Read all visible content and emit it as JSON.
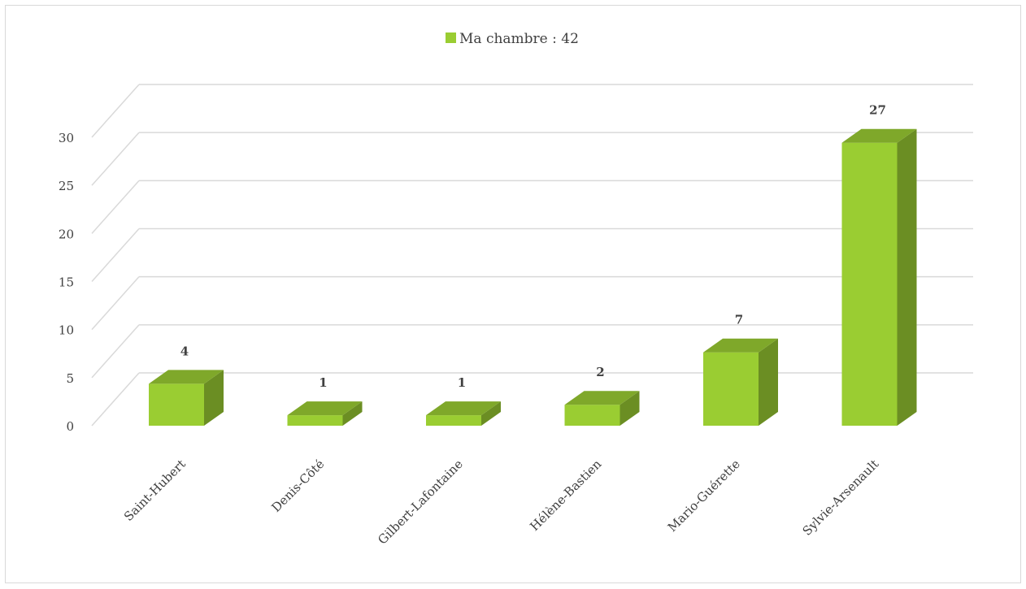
{
  "chart_data": {
    "type": "bar",
    "style": "3d-column",
    "categories": [
      "Saint-Hubert",
      "Denis-Côté",
      "Gilbert-Lafontaine",
      "Hélène-Bastien",
      "Mario-Guérette",
      "Sylvie-Arsenault"
    ],
    "series": [
      {
        "name": "Ma chambre : 42",
        "values": [
          4,
          1,
          1,
          2,
          7,
          27
        ],
        "color": "#9ACD32"
      }
    ],
    "data_labels": [
      "4",
      "1",
      "1",
      "2",
      "7",
      "27"
    ],
    "y_ticks": [
      "0",
      "5",
      "10",
      "15",
      "20",
      "25",
      "30"
    ],
    "ylim": [
      0,
      30
    ],
    "grid": true,
    "legend_position": "top-center",
    "colors": {
      "bar_front": "#9ACD32",
      "bar_side": "#6B8E23",
      "bar_top": "#7FA82A",
      "grid": "#d9d9d9",
      "text": "#404040"
    }
  }
}
